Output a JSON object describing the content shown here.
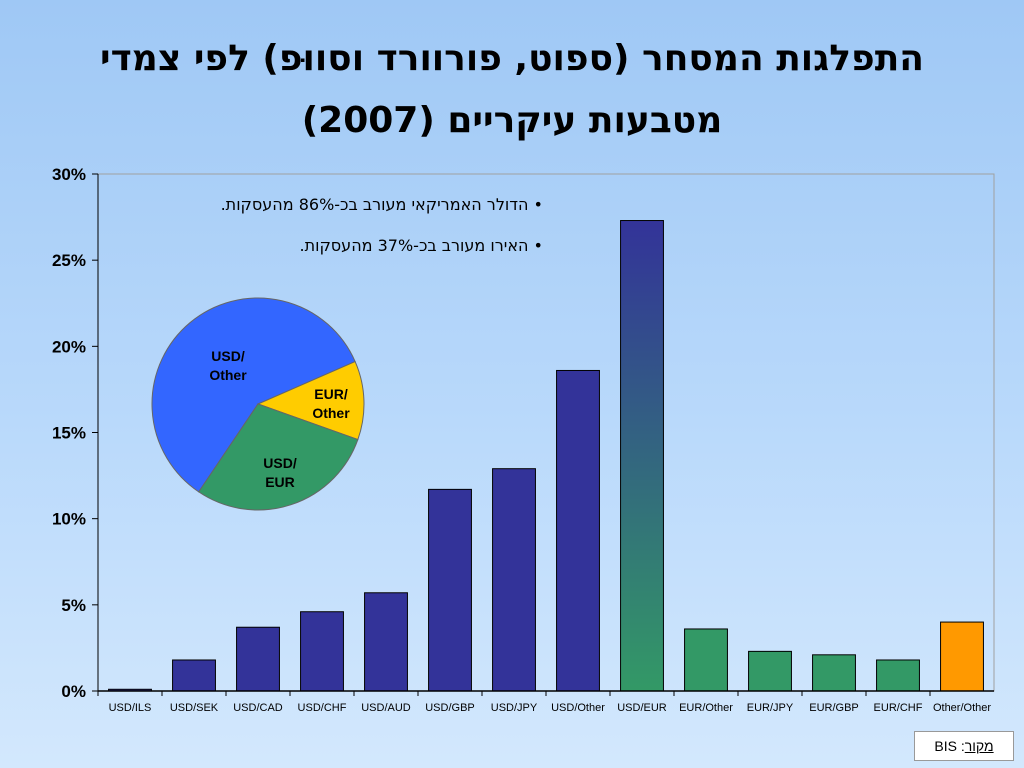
{
  "title": "התפלגות המסחר (ספוט, פורוורד וסווּפ) לפי צמדי מטבעות עיקריים (2007)",
  "source": {
    "label": "מקור",
    "value": "BIS"
  },
  "colors": {
    "blue": "#333399",
    "green": "#339966",
    "orange": "#ff9900"
  },
  "chart_data": [
    {
      "type": "bar",
      "categories": [
        "USD/ILS",
        "USD/SEK",
        "USD/CAD",
        "USD/CHF",
        "USD/AUD",
        "USD/GBP",
        "USD/JPY",
        "USD/Other",
        "USD/EUR",
        "EUR/Other",
        "EUR/JPY",
        "EUR/GBP",
        "EUR/CHF",
        "Other/Other"
      ],
      "values": [
        0.1,
        1.8,
        3.7,
        4.6,
        5.7,
        11.7,
        12.9,
        18.6,
        27.3,
        3.6,
        2.3,
        2.1,
        1.8,
        4.0
      ],
      "bar_colors": [
        "blue",
        "blue",
        "blue",
        "blue",
        "blue",
        "blue",
        "blue",
        "blue",
        "blue-green",
        "green",
        "green",
        "green",
        "green",
        "orange"
      ],
      "ylim": [
        0,
        30
      ],
      "yticks": [
        "0%",
        "5%",
        "10%",
        "15%",
        "20%",
        "25%",
        "30%"
      ],
      "annotations": [
        "• הדולר האמריקאי מעורב בכ-86% מהעסקות.",
        "• האירו מעורב בכ-37% מהעסקות."
      ]
    },
    {
      "type": "pie",
      "slices": [
        {
          "label": "USD/Other",
          "lines": [
            "USD/",
            "Other"
          ],
          "value": 59,
          "color": "#3366ff"
        },
        {
          "label": "EUR/Other",
          "lines": [
            "EUR/",
            "Other"
          ],
          "value": 12,
          "color": "#ffcc00"
        },
        {
          "label": "USD/EUR",
          "lines": [
            "USD/",
            "EUR"
          ],
          "value": 29,
          "color": "#339966"
        }
      ]
    }
  ]
}
